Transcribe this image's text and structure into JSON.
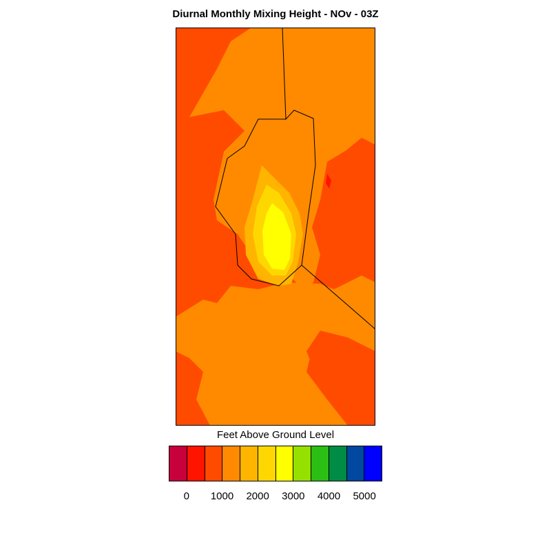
{
  "title": "Diurnal Monthly Mixing Height - NOv - 03Z",
  "colorbar": {
    "label": "Feet Above Ground Level",
    "colors": [
      "#c8003c",
      "#ff1400",
      "#ff4b00",
      "#ff8a00",
      "#ffb400",
      "#ffd700",
      "#ffff00",
      "#96e000",
      "#2cbe14",
      "#008c44",
      "#0048a0",
      "#0000ff"
    ],
    "ticks": [
      "0",
      "1000",
      "2000",
      "3000",
      "4000",
      "5000"
    ]
  },
  "map": {
    "background_color": "#ff4b00",
    "zone_colors": {
      "low": "#ff4b00",
      "mid": "#ff8a00",
      "higher": "#ffb400",
      "high": "#ffd700",
      "peak": "#ffff00",
      "lowest": "#ff1400"
    }
  }
}
